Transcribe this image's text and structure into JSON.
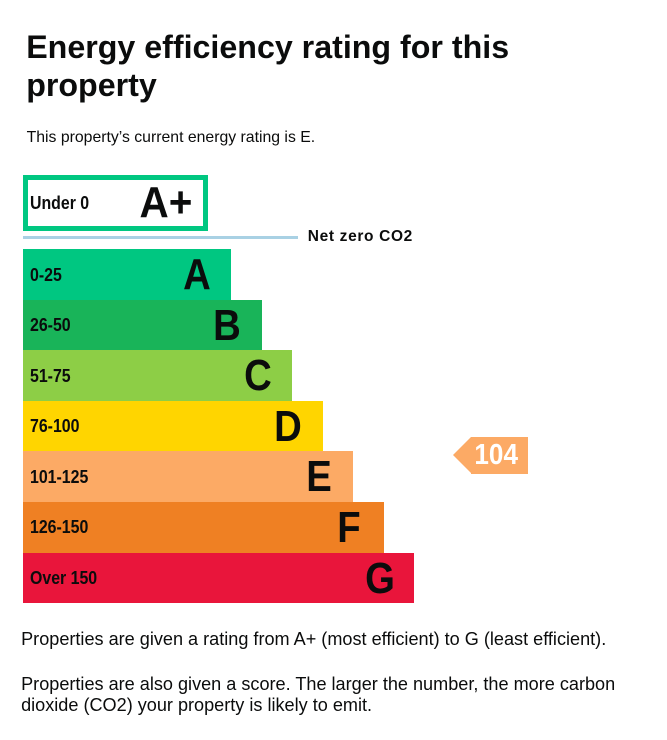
{
  "page": {
    "title": "Energy efficiency rating for this property",
    "subtitle": "This property’s current energy rating is E.",
    "note_rating": "Properties are given a rating from A+ (most efficient) to G (least efficient).",
    "note_score": "Properties are also given a score. The larger the number, the more carbon dioxide (CO2) your property is likely to emit."
  },
  "chart_data": {
    "type": "bar",
    "title": "Energy efficiency rating for this property",
    "current_rating": "E",
    "current_score": 104,
    "score_marker": {
      "value": "104",
      "color": "#fcaa65",
      "text_color": "#ffffff"
    },
    "net_zero": {
      "label": "Net zero CO2",
      "line_color": "#a9d1e4"
    },
    "top_band": {
      "range": "Under 0",
      "letter": "A+",
      "border_color": "#00c781",
      "fill": "#ffffff"
    },
    "categories": [
      "A",
      "B",
      "C",
      "D",
      "E",
      "F",
      "G"
    ],
    "bands": [
      {
        "range": "0-25",
        "letter": "A",
        "color": "#00c781"
      },
      {
        "range": "26-50",
        "letter": "B",
        "color": "#19b459"
      },
      {
        "range": "51-75",
        "letter": "C",
        "color": "#8dce46"
      },
      {
        "range": "76-100",
        "letter": "D",
        "color": "#ffd500"
      },
      {
        "range": "101-125",
        "letter": "E",
        "color": "#fcaa65"
      },
      {
        "range": "126-150",
        "letter": "F",
        "color": "#ef8023"
      },
      {
        "range": "Over 150",
        "letter": "G",
        "color": "#e9153b"
      }
    ],
    "legend_position": "none",
    "grid": false
  }
}
